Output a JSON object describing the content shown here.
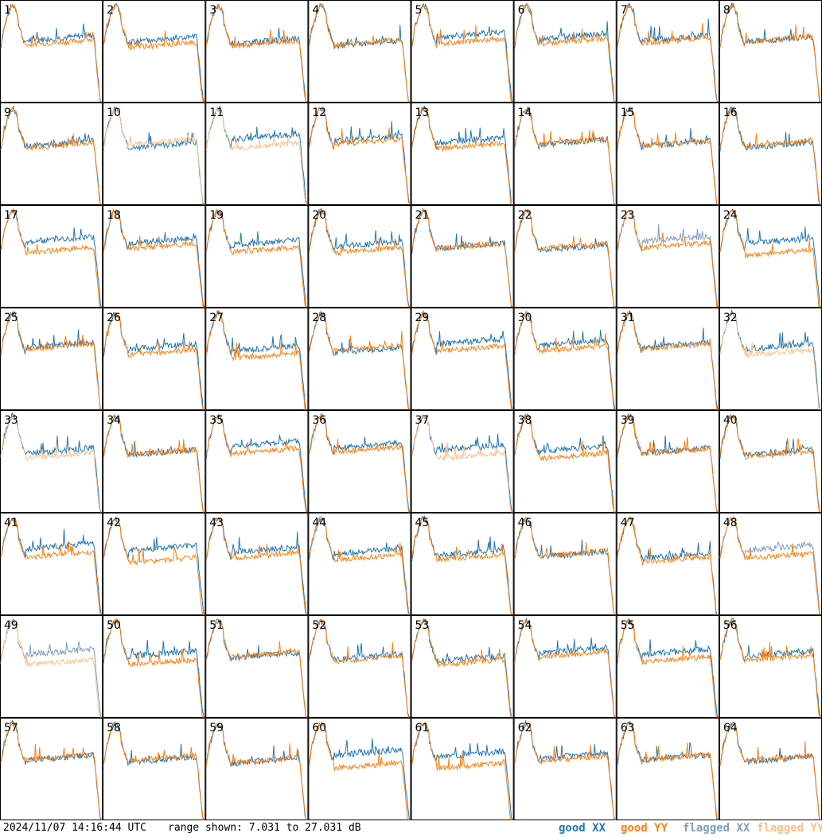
{
  "footer": {
    "timestamp": "2024/11/07 14:16:44 UTC",
    "range_text": "range shown: 7.031 to 27.031 dB"
  },
  "legend": [
    {
      "label": "good XX",
      "color": "#1f77b4"
    },
    {
      "label": "good YY",
      "color": "#ff7f0e"
    },
    {
      "label": "flagged XX",
      "color": "#7f9fbf"
    },
    {
      "label": "flagged YY",
      "color": "#ffbf87"
    }
  ],
  "colors": {
    "good_xx": "#1f77b4",
    "good_yy": "#ff7f0e",
    "flagged_xx": "#7f9fbf",
    "flagged_yy": "#ffbf87"
  },
  "chart_data": {
    "type": "line",
    "layout": "small-multiples 8x8",
    "ylim": [
      7.031,
      27.031
    ],
    "yunit": "dB",
    "series_names": [
      "good XX",
      "good YY",
      "flagged XX",
      "flagged YY"
    ],
    "panels": [
      {
        "id": "1",
        "xx": "good",
        "yy": "good"
      },
      {
        "id": "2",
        "xx": "good",
        "yy": "good"
      },
      {
        "id": "3",
        "xx": "good",
        "yy": "good"
      },
      {
        "id": "4",
        "xx": "good",
        "yy": "good"
      },
      {
        "id": "5",
        "xx": "good",
        "yy": "good"
      },
      {
        "id": "6",
        "xx": "good",
        "yy": "good"
      },
      {
        "id": "7",
        "xx": "good",
        "yy": "good"
      },
      {
        "id": "8",
        "xx": "good",
        "yy": "good"
      },
      {
        "id": "9",
        "xx": "good",
        "yy": "good"
      },
      {
        "id": "10",
        "xx": "good",
        "yy": "flagged"
      },
      {
        "id": "11",
        "xx": "good",
        "yy": "flagged"
      },
      {
        "id": "12",
        "xx": "good",
        "yy": "good"
      },
      {
        "id": "13",
        "xx": "good",
        "yy": "good"
      },
      {
        "id": "14",
        "xx": "good",
        "yy": "good"
      },
      {
        "id": "15",
        "xx": "good",
        "yy": "good"
      },
      {
        "id": "16",
        "xx": "good",
        "yy": "good"
      },
      {
        "id": "17",
        "xx": "good",
        "yy": "good"
      },
      {
        "id": "18",
        "xx": "good",
        "yy": "good"
      },
      {
        "id": "19",
        "xx": "good",
        "yy": "good"
      },
      {
        "id": "20",
        "xx": "good",
        "yy": "good"
      },
      {
        "id": "21",
        "xx": "good",
        "yy": "good"
      },
      {
        "id": "22",
        "xx": "good",
        "yy": "good"
      },
      {
        "id": "23",
        "xx": "flagged",
        "yy": "good"
      },
      {
        "id": "24",
        "xx": "good",
        "yy": "good"
      },
      {
        "id": "25",
        "xx": "good",
        "yy": "good"
      },
      {
        "id": "26",
        "xx": "good",
        "yy": "good"
      },
      {
        "id": "27",
        "xx": "good",
        "yy": "good"
      },
      {
        "id": "28",
        "xx": "good",
        "yy": "good"
      },
      {
        "id": "29",
        "xx": "good",
        "yy": "good"
      },
      {
        "id": "30",
        "xx": "good",
        "yy": "good"
      },
      {
        "id": "31",
        "xx": "good",
        "yy": "good"
      },
      {
        "id": "32",
        "xx": "good",
        "yy": "flagged"
      },
      {
        "id": "33",
        "xx": "good",
        "yy": "flagged"
      },
      {
        "id": "34",
        "xx": "good",
        "yy": "good"
      },
      {
        "id": "35",
        "xx": "good",
        "yy": "good"
      },
      {
        "id": "36",
        "xx": "good",
        "yy": "good"
      },
      {
        "id": "37",
        "xx": "good",
        "yy": "flagged"
      },
      {
        "id": "38",
        "xx": "good",
        "yy": "good"
      },
      {
        "id": "39",
        "xx": "good",
        "yy": "good"
      },
      {
        "id": "40",
        "xx": "good",
        "yy": "good"
      },
      {
        "id": "41",
        "xx": "good",
        "yy": "good"
      },
      {
        "id": "42",
        "xx": "good",
        "yy": "good"
      },
      {
        "id": "43",
        "xx": "good",
        "yy": "good"
      },
      {
        "id": "44",
        "xx": "good",
        "yy": "good"
      },
      {
        "id": "45",
        "xx": "good",
        "yy": "good"
      },
      {
        "id": "46",
        "xx": "good",
        "yy": "good"
      },
      {
        "id": "47",
        "xx": "good",
        "yy": "good"
      },
      {
        "id": "48",
        "xx": "flagged",
        "yy": "good"
      },
      {
        "id": "49",
        "xx": "flagged",
        "yy": "flagged"
      },
      {
        "id": "50",
        "xx": "good",
        "yy": "good"
      },
      {
        "id": "51",
        "xx": "good",
        "yy": "good"
      },
      {
        "id": "52",
        "xx": "good",
        "yy": "good"
      },
      {
        "id": "53",
        "xx": "good",
        "yy": "good"
      },
      {
        "id": "54",
        "xx": "good",
        "yy": "good"
      },
      {
        "id": "55",
        "xx": "good",
        "yy": "good"
      },
      {
        "id": "56",
        "xx": "good",
        "yy": "good"
      },
      {
        "id": "57",
        "xx": "good",
        "yy": "good"
      },
      {
        "id": "58",
        "xx": "good",
        "yy": "good"
      },
      {
        "id": "59",
        "xx": "good",
        "yy": "good"
      },
      {
        "id": "60",
        "xx": "good",
        "yy": "good"
      },
      {
        "id": "61",
        "xx": "good",
        "yy": "good"
      },
      {
        "id": "62",
        "xx": "good",
        "yy": "good"
      },
      {
        "id": "63",
        "xx": "good",
        "yy": "good"
      },
      {
        "id": "64",
        "xx": "good",
        "yy": "good"
      }
    ]
  }
}
